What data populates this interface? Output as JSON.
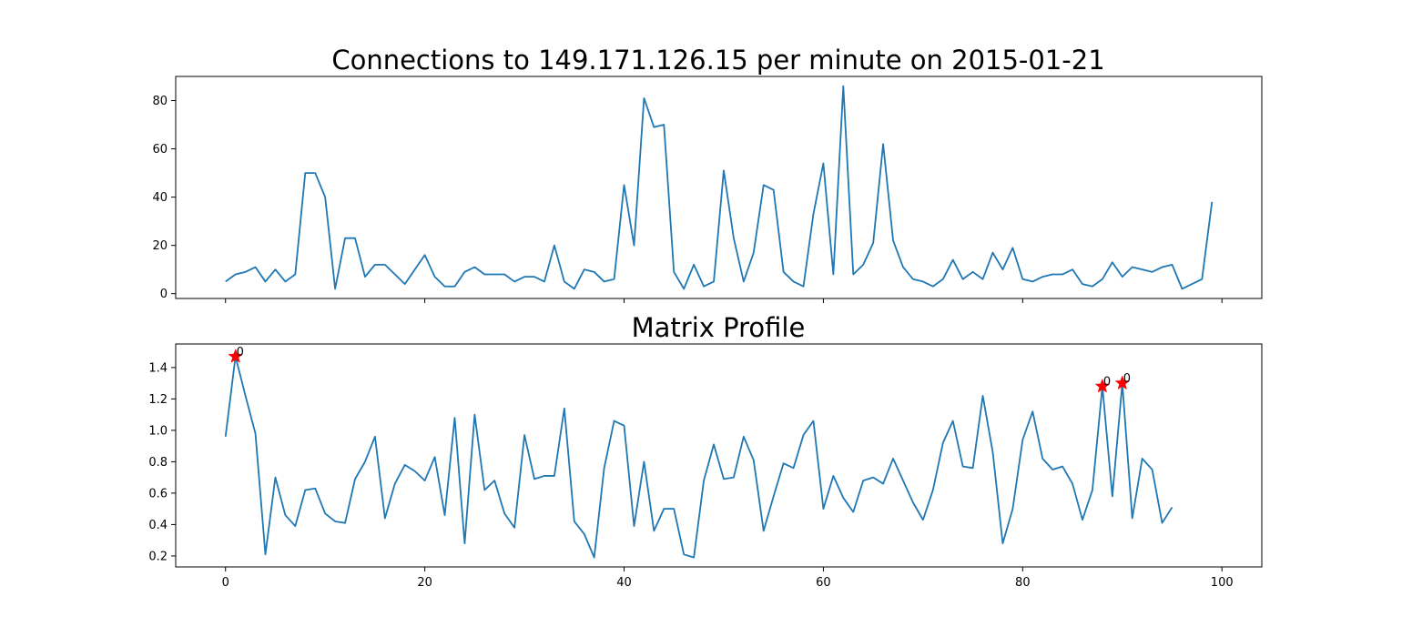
{
  "chart_data": [
    {
      "type": "line",
      "title": "Connections to 149.171.126.15 per minute on 2015-01-21",
      "xlabel": "",
      "ylabel": "",
      "xlim": [
        -5,
        104
      ],
      "ylim": [
        -2,
        90
      ],
      "x_ticks": [
        0,
        20,
        40,
        60,
        80,
        100
      ],
      "x_tick_labels_visible": false,
      "y_ticks": [
        0,
        20,
        40,
        60,
        80
      ],
      "y_tick_labels": [
        "0",
        "20",
        "40",
        "60",
        "80"
      ],
      "grid": false,
      "series": [
        {
          "color": "#1f77b4",
          "x": [
            0,
            1,
            2,
            3,
            4,
            5,
            6,
            7,
            8,
            9,
            10,
            11,
            12,
            13,
            14,
            15,
            16,
            17,
            18,
            19,
            20,
            21,
            22,
            23,
            24,
            25,
            26,
            27,
            28,
            29,
            30,
            31,
            32,
            33,
            34,
            35,
            36,
            37,
            38,
            39,
            40,
            41,
            42,
            43,
            44,
            45,
            46,
            47,
            48,
            49,
            50,
            51,
            52,
            53,
            54,
            55,
            56,
            57,
            58,
            59,
            60,
            61,
            62,
            63,
            64,
            65,
            66,
            67,
            68,
            69,
            70,
            71,
            72,
            73,
            74,
            75,
            76,
            77,
            78,
            79,
            80,
            81,
            82,
            83,
            84,
            85,
            86,
            87,
            88,
            89,
            90,
            91,
            92,
            93,
            94,
            95,
            96,
            97,
            98,
            99
          ],
          "values": [
            5,
            8,
            9,
            11,
            5,
            10,
            5,
            8,
            50,
            50,
            40,
            2,
            23,
            23,
            7,
            12,
            12,
            8,
            4,
            10,
            16,
            7,
            3,
            3,
            9,
            11,
            8,
            8,
            8,
            5,
            7,
            7,
            5,
            20,
            5,
            2,
            10,
            9,
            5,
            6,
            45,
            20,
            81,
            69,
            70,
            9,
            2,
            12,
            3,
            5,
            51,
            23,
            5,
            17,
            45,
            43,
            9,
            5,
            3,
            33,
            54,
            8,
            86,
            8,
            12,
            21,
            62,
            22,
            11,
            6,
            5,
            3,
            6,
            14,
            6,
            9,
            6,
            17,
            10,
            19,
            6,
            5,
            7,
            8,
            8,
            10,
            4,
            3,
            6,
            13,
            7,
            11,
            10,
            9,
            11,
            12,
            2,
            4,
            6,
            38
          ]
        }
      ]
    },
    {
      "type": "line",
      "title": "Matrix Profile",
      "xlabel": "",
      "ylabel": "",
      "xlim": [
        -5,
        104
      ],
      "ylim": [
        0.13,
        1.55
      ],
      "x_ticks": [
        0,
        20,
        40,
        60,
        80,
        100
      ],
      "x_tick_labels": [
        "0",
        "20",
        "40",
        "60",
        "80",
        "100"
      ],
      "y_ticks": [
        0.2,
        0.4,
        0.6,
        0.8,
        1.0,
        1.2,
        1.4
      ],
      "y_tick_labels": [
        "0.2",
        "0.4",
        "0.6",
        "0.8",
        "1.0",
        "1.2",
        "1.4"
      ],
      "grid": false,
      "series": [
        {
          "color": "#1f77b4",
          "x": [
            0,
            1,
            2,
            3,
            4,
            5,
            6,
            7,
            8,
            9,
            10,
            11,
            12,
            13,
            14,
            15,
            16,
            17,
            18,
            19,
            20,
            21,
            22,
            23,
            24,
            25,
            26,
            27,
            28,
            29,
            30,
            31,
            32,
            33,
            34,
            35,
            36,
            37,
            38,
            39,
            40,
            41,
            42,
            43,
            44,
            45,
            46,
            47,
            48,
            49,
            50,
            51,
            52,
            53,
            54,
            55,
            56,
            57,
            58,
            59,
            60,
            61,
            62,
            63,
            64,
            65,
            66,
            67,
            68,
            69,
            70,
            71,
            72,
            73,
            74,
            75,
            76,
            77,
            78,
            79,
            80,
            81,
            82,
            83,
            84,
            85,
            86,
            87,
            88,
            89,
            90,
            91,
            92,
            93,
            94,
            95
          ],
          "values": [
            0.96,
            1.47,
            1.22,
            0.98,
            0.21,
            0.7,
            0.46,
            0.39,
            0.62,
            0.63,
            0.47,
            0.42,
            0.41,
            0.69,
            0.8,
            0.96,
            0.44,
            0.66,
            0.78,
            0.74,
            0.68,
            0.83,
            0.46,
            1.08,
            0.28,
            1.1,
            0.62,
            0.68,
            0.47,
            0.38,
            0.97,
            0.69,
            0.71,
            0.71,
            1.14,
            0.42,
            0.34,
            0.19,
            0.76,
            1.06,
            1.03,
            0.39,
            0.8,
            0.36,
            0.5,
            0.5,
            0.21,
            0.19,
            0.68,
            0.91,
            0.69,
            0.7,
            0.96,
            0.81,
            0.36,
            0.58,
            0.79,
            0.76,
            0.97,
            1.06,
            0.5,
            0.71,
            0.57,
            0.48,
            0.68,
            0.7,
            0.66,
            0.82,
            0.68,
            0.54,
            0.43,
            0.62,
            0.92,
            1.06,
            0.77,
            0.76,
            1.22,
            0.86,
            0.28,
            0.5,
            0.94,
            1.12,
            0.82,
            0.75,
            0.77,
            0.66,
            0.43,
            0.62,
            1.28,
            0.58,
            1.3,
            0.44,
            0.82,
            0.75,
            0.41,
            0.51
          ]
        }
      ],
      "markers": [
        {
          "x": 1,
          "y": 1.47,
          "label": "0",
          "color": "#ff0000",
          "shape": "star"
        },
        {
          "x": 88,
          "y": 1.28,
          "label": "0",
          "color": "#ff0000",
          "shape": "star"
        },
        {
          "x": 90,
          "y": 1.3,
          "label": "0",
          "color": "#ff0000",
          "shape": "star"
        }
      ]
    }
  ]
}
